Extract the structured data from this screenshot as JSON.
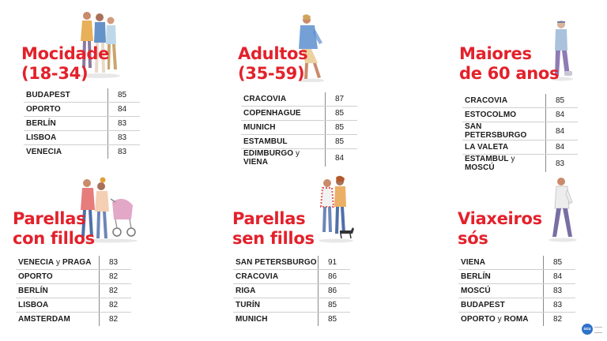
{
  "panels": [
    {
      "title": [
        "Mocidade",
        "(18-34)"
      ],
      "rows": [
        {
          "city": "BUDAPEST",
          "score": "85"
        },
        {
          "city": "OPORTO",
          "score": "84"
        },
        {
          "city": "BERLÍN",
          "score": "83"
        },
        {
          "city": "LISBOA",
          "score": "83"
        },
        {
          "city": "VENECIA",
          "score": "83"
        }
      ]
    },
    {
      "title": [
        "Adultos",
        "(35-59)"
      ],
      "rows": [
        {
          "city": "CRACOVIA",
          "score": "87"
        },
        {
          "city": "COPENHAGUE",
          "score": "85"
        },
        {
          "city": "MUNICH",
          "score": "85"
        },
        {
          "city": "ESTAMBUL",
          "score": "85"
        },
        {
          "city": "EDIMBURGO y VIENA",
          "score": "84"
        }
      ]
    },
    {
      "title": [
        "Maiores",
        "de 60 anos"
      ],
      "rows": [
        {
          "city": "CRACOVIA",
          "score": "85"
        },
        {
          "city": "ESTOCOLMO",
          "score": "84"
        },
        {
          "city": "SAN PETERSBURGO",
          "score": "84"
        },
        {
          "city": "LA VALETA",
          "score": "84"
        },
        {
          "city": "ESTAMBUL y MOSCÚ",
          "score": "83"
        }
      ]
    },
    {
      "title": [
        "Parellas",
        "con fillos"
      ],
      "rows": [
        {
          "city": "VENECIA y PRAGA",
          "score": "83"
        },
        {
          "city": "OPORTO",
          "score": "82"
        },
        {
          "city": "BERLÍN",
          "score": "82"
        },
        {
          "city": "LISBOA",
          "score": "82"
        },
        {
          "city": "AMSTERDAM",
          "score": "82"
        }
      ]
    },
    {
      "title": [
        "Parellas",
        "sen fillos"
      ],
      "rows": [
        {
          "city": "SAN PETERSBURGO",
          "score": "91"
        },
        {
          "city": "CRACOVIA",
          "score": "86"
        },
        {
          "city": "RIGA",
          "score": "86"
        },
        {
          "city": "TURÍN",
          "score": "85"
        },
        {
          "city": "MUNICH",
          "score": "85"
        }
      ]
    },
    {
      "title": [
        "Viaxeiros",
        "sós"
      ],
      "rows": [
        {
          "city": "VIENA",
          "score": "85"
        },
        {
          "city": "BERLÍN",
          "score": "84"
        },
        {
          "city": "MOSCÚ",
          "score": "83"
        },
        {
          "city": "BUDAPEST",
          "score": "83"
        },
        {
          "city": "OPORTO y ROMA",
          "score": "82"
        }
      ]
    }
  ],
  "colors": {
    "accent": "#e3212b",
    "logo": "#2f73c9"
  },
  "logo": {
    "text": "ocu"
  }
}
